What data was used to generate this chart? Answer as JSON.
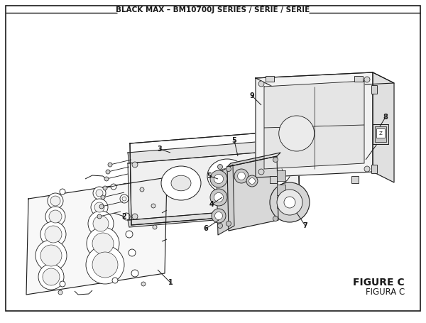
{
  "title": "BLACK MAX – BM10700J SERIES / SÉRIE / SERIE",
  "figure_label": "FIGURE C",
  "figura_label": "FIGURA C",
  "bg_color": "#ffffff",
  "border_color": "#1a1a1a",
  "title_fontsize": 7.5,
  "label_fontsize": 7,
  "fig_label_fontsize": 9
}
